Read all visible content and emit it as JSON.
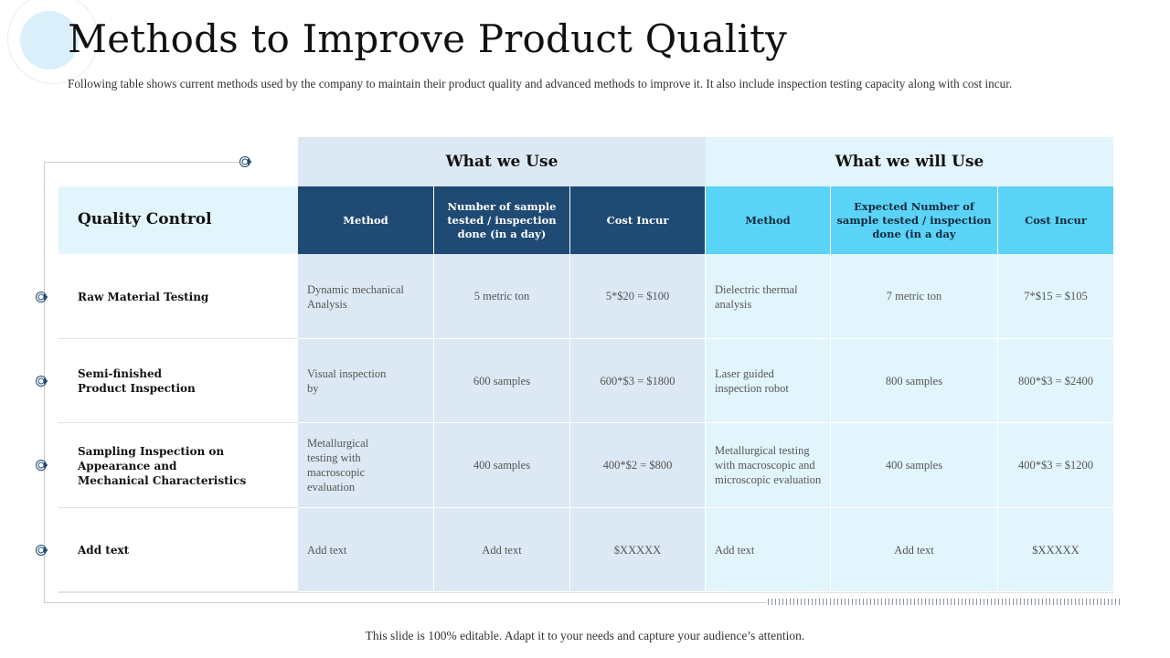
{
  "title": "Methods to Improve Product Quality",
  "subtitle": "Following table shows current methods used by the company to maintain their product quality and advanced methods to improve it. It also include inspection testing capacity along with cost incur.",
  "table": {
    "group_use": "What we Use",
    "group_will": "What we will Use",
    "row_header": "Quality Control",
    "columns": [
      "Method",
      "Number of sample tested / inspection done (in a day)",
      "Cost Incur",
      "Method",
      "Expected Number of sample tested / inspection done (in a day",
      "Cost Incur"
    ],
    "rows": [
      {
        "label": "Raw Material Testing",
        "use_method": "Dynamic mechanical Analysis",
        "use_samples": "5 metric ton",
        "use_cost": "5*$20 = $100",
        "will_method": "Dielectric thermal analysis",
        "will_samples": "7 metric ton",
        "will_cost": "7*$15 = $105"
      },
      {
        "label": "Semi-finished Product Inspection",
        "use_method": "Visual inspection by",
        "use_samples": "600 samples",
        "use_cost": "600*$3 = $1800",
        "will_method": "Laser guided inspection robot",
        "will_samples": "800 samples",
        "will_cost": "800*$3 = $2400"
      },
      {
        "label": "Sampling Inspection on Appearance and Mechanical Characteristics",
        "use_method": "Metallurgical testing with macroscopic evaluation",
        "use_samples": "400 samples",
        "use_cost": "400*$2 = $800",
        "will_method": "Metallurgical testing with macroscopic and microscopic evaluation",
        "will_samples": "400 samples",
        "will_cost": "400*$3 = $1200"
      },
      {
        "label": "Add text",
        "use_method": "Add text",
        "use_samples": "Add text",
        "use_cost": "$XXXXX",
        "will_method": "Add text",
        "will_samples": "Add text",
        "will_cost": "$XXXXX"
      }
    ]
  },
  "footer": "This slide is 100% editable. Adapt it to your needs and capture your audience’s attention.",
  "colors": {
    "dark_header": "#1f4a74",
    "light_header": "#5bd3f7",
    "use_bg": "#dce8f4",
    "will_bg": "#e2f5fc"
  },
  "icons": {
    "row_marker": "circle-arrow-icon",
    "header_marker": "circle-arrow-icon"
  }
}
